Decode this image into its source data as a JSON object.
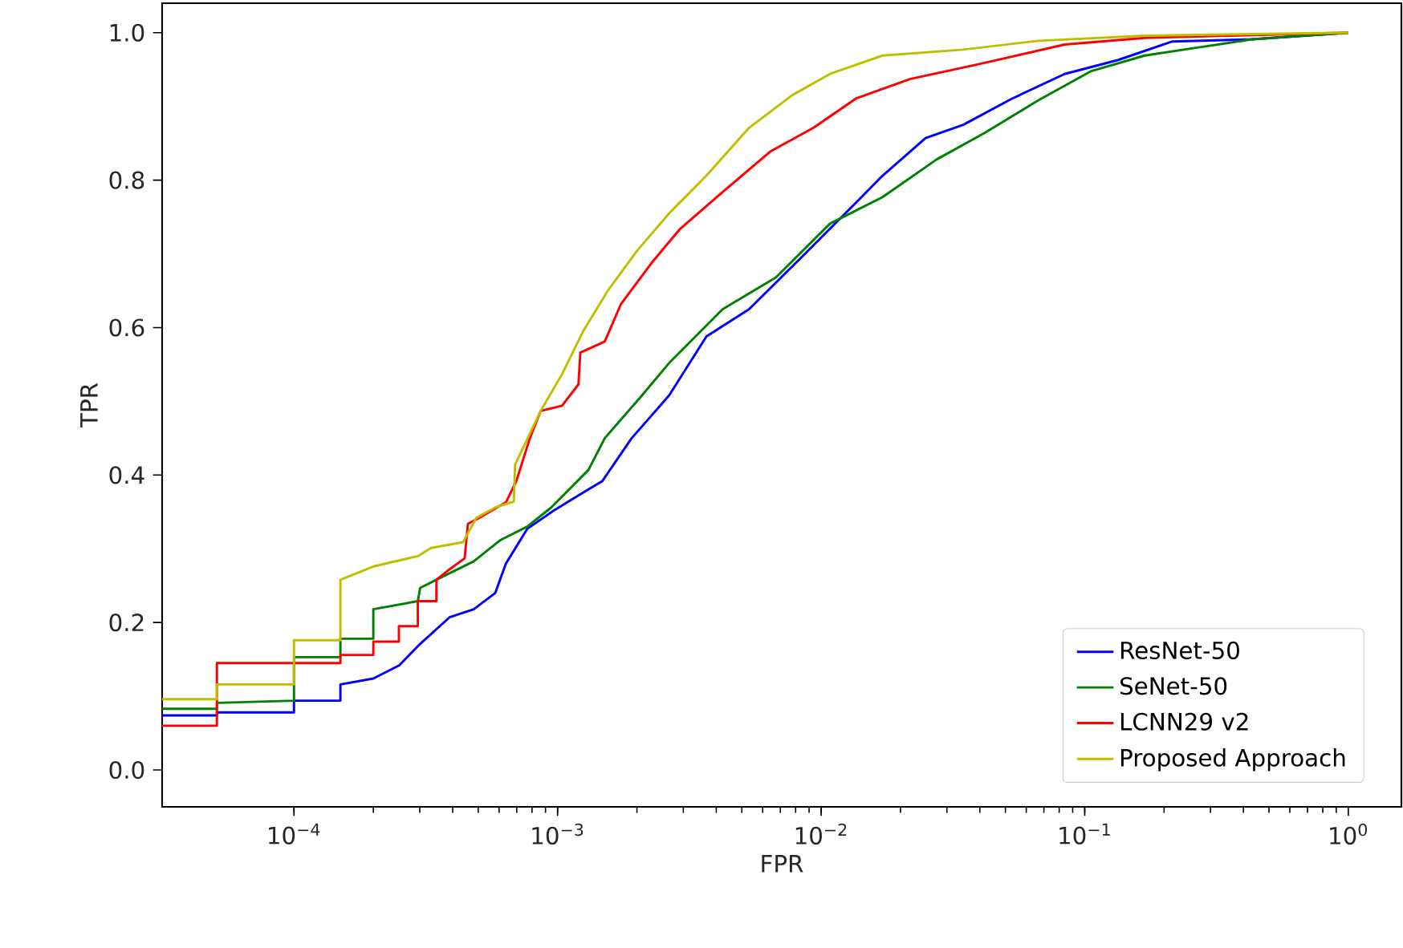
{
  "chart_data": {
    "type": "line",
    "xlabel": "FPR",
    "ylabel": "TPR",
    "log": "x",
    "legend": "bottom right",
    "xlim": [
      3.16e-05,
      1.59
    ],
    "ylim": [
      -0.05,
      1.04
    ],
    "xticks": [
      {
        "value": 0.0001,
        "label": "10$^{−4}$"
      },
      {
        "value": 0.001,
        "label": "10$^{−3}$"
      },
      {
        "value": 0.01,
        "label": "10$^{−2}$"
      },
      {
        "value": 0.1,
        "label": "10$^{−1}$"
      },
      {
        "value": 1,
        "label": "10$^{0}$"
      }
    ],
    "yticks": [
      {
        "value": 0,
        "label": "0.0"
      },
      {
        "value": 0.2,
        "label": "0.2"
      },
      {
        "value": 0.4,
        "label": "0.4"
      },
      {
        "value": 0.6,
        "label": "0.6"
      },
      {
        "value": 0.8,
        "label": "0.8"
      },
      {
        "value": 1,
        "label": "1.0"
      }
    ],
    "series": [
      {
        "name": "ResNet-50",
        "color": "#0000ff",
        "x": [
          3.16e-05,
          5.1e-05,
          5.1e-05,
          0.0001,
          0.0001,
          0.00015,
          0.00015,
          0.0002,
          0.000251,
          0.000301,
          0.000389,
          0.000481,
          0.00058,
          0.000637,
          0.000767,
          0.000968,
          0.00122,
          0.00148,
          0.00191,
          0.00265,
          0.00367,
          0.00533,
          0.00851,
          0.0136,
          0.0171,
          0.0249,
          0.0346,
          0.0526,
          0.0839,
          0.134,
          0.214,
          0.431,
          1
        ],
        "values": [
          0.074,
          0.074,
          0.078,
          0.078,
          0.094,
          0.094,
          0.116,
          0.124,
          0.142,
          0.171,
          0.207,
          0.218,
          0.24,
          0.28,
          0.327,
          0.352,
          0.374,
          0.392,
          0.45,
          0.508,
          0.588,
          0.625,
          0.697,
          0.77,
          0.806,
          0.857,
          0.875,
          0.91,
          0.944,
          0.963,
          0.988,
          0.991,
          1.0
        ]
      },
      {
        "name": "SeNet-50",
        "color": "#008000",
        "x": [
          3.16e-05,
          5.1e-05,
          5.1e-05,
          0.0001,
          0.0001,
          0.00015,
          0.00015,
          0.0002,
          0.0002,
          0.000295,
          0.000301,
          0.00038,
          0.000481,
          0.000608,
          0.000767,
          0.000946,
          0.00131,
          0.00151,
          0.00209,
          0.00265,
          0.00423,
          0.00673,
          0.0108,
          0.0171,
          0.0274,
          0.0417,
          0.0665,
          0.106,
          0.169,
          0.27,
          0.431,
          1
        ],
        "values": [
          0.083,
          0.083,
          0.091,
          0.094,
          0.153,
          0.153,
          0.178,
          0.178,
          0.218,
          0.229,
          0.247,
          0.265,
          0.283,
          0.312,
          0.33,
          0.356,
          0.407,
          0.45,
          0.508,
          0.552,
          0.625,
          0.668,
          0.741,
          0.777,
          0.828,
          0.864,
          0.908,
          0.948,
          0.969,
          0.98,
          0.991,
          1.0
        ]
      },
      {
        "name": "LCNN29 v2",
        "color": "#ff0000",
        "x": [
          3.16e-05,
          5.1e-05,
          5.1e-05,
          0.00015,
          0.00015,
          0.0002,
          0.0002,
          0.00025,
          0.00025,
          0.000295,
          0.000295,
          0.000347,
          0.000347,
          0.000389,
          0.000444,
          0.000457,
          0.0005,
          0.000637,
          0.000698,
          0.000785,
          0.000863,
          0.00104,
          0.0012,
          0.00122,
          0.00151,
          0.00174,
          0.0023,
          0.0029,
          0.00423,
          0.00643,
          0.00935,
          0.0136,
          0.0217,
          0.0417,
          0.0839,
          0.169,
          1
        ],
        "values": [
          0.06,
          0.06,
          0.145,
          0.145,
          0.156,
          0.156,
          0.174,
          0.174,
          0.195,
          0.195,
          0.229,
          0.229,
          0.258,
          0.272,
          0.287,
          0.334,
          0.341,
          0.363,
          0.392,
          0.45,
          0.487,
          0.494,
          0.523,
          0.566,
          0.581,
          0.632,
          0.69,
          0.733,
          0.784,
          0.839,
          0.871,
          0.911,
          0.937,
          0.959,
          0.984,
          0.993,
          1.0
        ]
      },
      {
        "name": "Proposed Approach",
        "color": "#bfbf00",
        "x": [
          3.16e-05,
          5.1e-05,
          5.1e-05,
          0.0001,
          0.0001,
          0.00015,
          0.00015,
          0.0002,
          0.000295,
          0.000331,
          0.000438,
          0.000492,
          0.00058,
          0.000682,
          0.00069,
          0.000863,
          0.00104,
          0.00125,
          0.00155,
          0.002,
          0.00265,
          0.00367,
          0.00533,
          0.00775,
          0.0108,
          0.0171,
          0.0346,
          0.0665,
          0.169,
          1
        ],
        "values": [
          0.096,
          0.096,
          0.116,
          0.116,
          0.176,
          0.176,
          0.258,
          0.276,
          0.29,
          0.301,
          0.309,
          0.342,
          0.356,
          0.364,
          0.414,
          0.487,
          0.537,
          0.595,
          0.65,
          0.704,
          0.755,
          0.806,
          0.871,
          0.915,
          0.944,
          0.969,
          0.977,
          0.989,
          0.996,
          1.0
        ]
      }
    ]
  }
}
